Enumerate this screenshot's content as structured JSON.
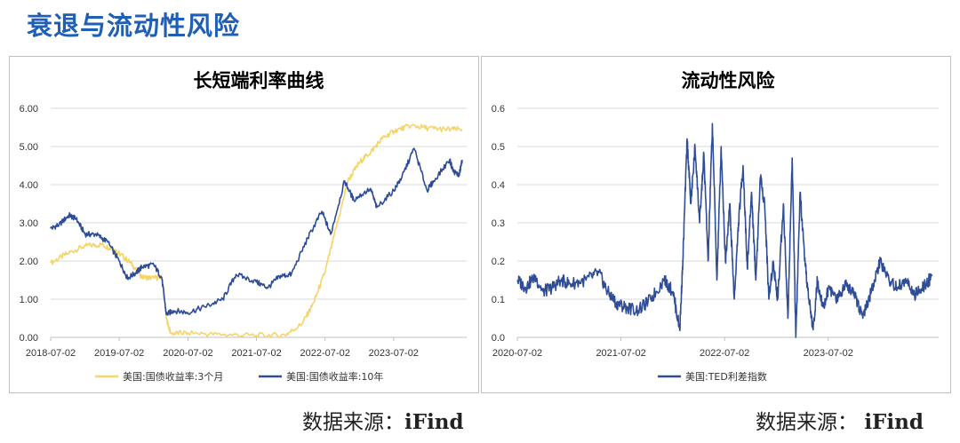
{
  "page": {
    "title": "衰退与流动性风险"
  },
  "source": {
    "label": "数据来源：",
    "name": "iFind"
  },
  "colors": {
    "yellow": "#f5d468",
    "blue": "#2e4d96",
    "grid": "#d9d9d9",
    "axis": "#bfbfbf"
  },
  "chart_data": [
    {
      "type": "line",
      "title": "长短端利率曲线",
      "x_ticks": [
        "2018-07-02",
        "2019-07-02",
        "2020-07-02",
        "2021-07-02",
        "2022-07-02",
        "2023-07-02"
      ],
      "ylim": [
        0,
        6
      ],
      "y_ticks": [
        "0.00",
        "1.00",
        "2.00",
        "3.00",
        "4.00",
        "5.00",
        "6.00"
      ],
      "grid": true,
      "legend": "bottom",
      "series": [
        {
          "name": "美国:国债收益率:3个月",
          "color": "#f5d468",
          "points": [
            [
              "2018-07-02",
              1.95
            ],
            [
              "2018-10-01",
              2.2
            ],
            [
              "2019-01-02",
              2.4
            ],
            [
              "2019-04-01",
              2.43
            ],
            [
              "2019-06-03",
              2.3
            ],
            [
              "2019-07-02",
              2.2
            ],
            [
              "2019-09-02",
              1.95
            ],
            [
              "2019-11-01",
              1.58
            ],
            [
              "2020-01-02",
              1.55
            ],
            [
              "2020-02-14",
              1.58
            ],
            [
              "2020-03-09",
              0.5
            ],
            [
              "2020-04-01",
              0.1
            ],
            [
              "2020-07-01",
              0.12
            ],
            [
              "2021-01-04",
              0.07
            ],
            [
              "2021-07-01",
              0.05
            ],
            [
              "2021-12-01",
              0.06
            ],
            [
              "2022-03-01",
              0.35
            ],
            [
              "2022-05-02",
              0.9
            ],
            [
              "2022-07-01",
              1.7
            ],
            [
              "2022-09-01",
              2.9
            ],
            [
              "2022-11-01",
              4.1
            ],
            [
              "2023-01-03",
              4.6
            ],
            [
              "2023-03-01",
              4.85
            ],
            [
              "2023-05-01",
              5.2
            ],
            [
              "2023-07-03",
              5.4
            ],
            [
              "2023-10-02",
              5.55
            ],
            [
              "2024-01-02",
              5.48
            ],
            [
              "2024-04-01",
              5.45
            ],
            [
              "2024-07-01",
              5.45
            ]
          ]
        },
        {
          "name": "美国:国债收益率:10年",
          "color": "#2e4d96",
          "points": [
            [
              "2018-07-02",
              2.85
            ],
            [
              "2018-08-15",
              2.95
            ],
            [
              "2018-10-08",
              3.2
            ],
            [
              "2018-11-15",
              3.1
            ],
            [
              "2019-01-02",
              2.7
            ],
            [
              "2019-03-01",
              2.7
            ],
            [
              "2019-05-01",
              2.5
            ],
            [
              "2019-07-02",
              2.0
            ],
            [
              "2019-08-15",
              1.55
            ],
            [
              "2019-10-01",
              1.7
            ],
            [
              "2019-11-01",
              1.85
            ],
            [
              "2020-01-02",
              1.9
            ],
            [
              "2020-02-14",
              1.55
            ],
            [
              "2020-03-09",
              0.6
            ],
            [
              "2020-04-15",
              0.7
            ],
            [
              "2020-07-01",
              0.65
            ],
            [
              "2020-10-01",
              0.8
            ],
            [
              "2021-01-04",
              1.0
            ],
            [
              "2021-03-15",
              1.65
            ],
            [
              "2021-07-01",
              1.45
            ],
            [
              "2021-09-01",
              1.3
            ],
            [
              "2021-11-01",
              1.6
            ],
            [
              "2022-01-03",
              1.65
            ],
            [
              "2022-04-01",
              2.6
            ],
            [
              "2022-06-15",
              3.3
            ],
            [
              "2022-08-01",
              2.7
            ],
            [
              "2022-10-14",
              4.1
            ],
            [
              "2022-12-01",
              3.6
            ],
            [
              "2023-03-01",
              3.9
            ],
            [
              "2023-04-03",
              3.4
            ],
            [
              "2023-07-03",
              3.85
            ],
            [
              "2023-08-15",
              4.2
            ],
            [
              "2023-10-19",
              4.95
            ],
            [
              "2023-12-27",
              3.85
            ],
            [
              "2024-02-01",
              4.1
            ],
            [
              "2024-04-25",
              4.65
            ],
            [
              "2024-05-15",
              4.35
            ],
            [
              "2024-06-15",
              4.25
            ],
            [
              "2024-07-01",
              4.65
            ]
          ]
        }
      ]
    },
    {
      "type": "line",
      "title": "流动性风险",
      "x_ticks": [
        "2020-07-02",
        "2021-07-02",
        "2022-07-02",
        "2023-07-02"
      ],
      "ylim": [
        0,
        0.6
      ],
      "y_ticks": [
        "0.0",
        "0.1",
        "0.2",
        "0.3",
        "0.4",
        "0.5",
        "0.6"
      ],
      "grid": true,
      "legend": "bottom",
      "series": [
        {
          "name": "美国:TED利差指数",
          "color": "#2e4d96",
          "points": [
            [
              "2020-07-02",
              0.15
            ],
            [
              "2020-08-01",
              0.13
            ],
            [
              "2020-09-01",
              0.16
            ],
            [
              "2020-10-01",
              0.12
            ],
            [
              "2020-11-01",
              0.13
            ],
            [
              "2020-12-01",
              0.15
            ],
            [
              "2021-01-04",
              0.14
            ],
            [
              "2021-03-01",
              0.15
            ],
            [
              "2021-04-15",
              0.17
            ],
            [
              "2021-05-15",
              0.12
            ],
            [
              "2021-06-15",
              0.09
            ],
            [
              "2021-07-15",
              0.08
            ],
            [
              "2021-09-01",
              0.07
            ],
            [
              "2021-10-15",
              0.1
            ],
            [
              "2021-12-01",
              0.15
            ],
            [
              "2022-01-01",
              0.12
            ],
            [
              "2022-01-25",
              0.02
            ],
            [
              "2022-02-05",
              0.2
            ],
            [
              "2022-02-20",
              0.52
            ],
            [
              "2022-03-05",
              0.35
            ],
            [
              "2022-03-20",
              0.5
            ],
            [
              "2022-04-05",
              0.3
            ],
            [
              "2022-04-20",
              0.48
            ],
            [
              "2022-05-05",
              0.2
            ],
            [
              "2022-05-20",
              0.56
            ],
            [
              "2022-06-05",
              0.15
            ],
            [
              "2022-06-20",
              0.5
            ],
            [
              "2022-07-05",
              0.2
            ],
            [
              "2022-07-20",
              0.35
            ],
            [
              "2022-08-05",
              0.1
            ],
            [
              "2022-08-20",
              0.3
            ],
            [
              "2022-09-05",
              0.45
            ],
            [
              "2022-09-20",
              0.18
            ],
            [
              "2022-10-05",
              0.38
            ],
            [
              "2022-10-20",
              0.15
            ],
            [
              "2022-11-05",
              0.42
            ],
            [
              "2022-11-20",
              0.35
            ],
            [
              "2022-12-05",
              0.1
            ],
            [
              "2022-12-20",
              0.2
            ],
            [
              "2023-01-05",
              0.1
            ],
            [
              "2023-01-25",
              0.35
            ],
            [
              "2023-02-10",
              0.05
            ],
            [
              "2023-02-25",
              0.47
            ],
            [
              "2023-03-10",
              0.0
            ],
            [
              "2023-03-25",
              0.38
            ],
            [
              "2023-04-10",
              0.2
            ],
            [
              "2023-04-25",
              0.1
            ],
            [
              "2023-05-10",
              0.02
            ],
            [
              "2023-05-25",
              0.15
            ],
            [
              "2023-06-15",
              0.08
            ],
            [
              "2023-07-05",
              0.13
            ],
            [
              "2023-08-01",
              0.1
            ],
            [
              "2023-09-01",
              0.14
            ],
            [
              "2023-10-01",
              0.12
            ],
            [
              "2023-11-01",
              0.05
            ],
            [
              "2023-12-01",
              0.12
            ],
            [
              "2024-01-02",
              0.2
            ],
            [
              "2024-02-01",
              0.15
            ],
            [
              "2024-03-01",
              0.13
            ],
            [
              "2024-04-01",
              0.15
            ],
            [
              "2024-05-01",
              0.11
            ],
            [
              "2024-06-01",
              0.13
            ],
            [
              "2024-07-01",
              0.16
            ]
          ]
        }
      ]
    }
  ]
}
